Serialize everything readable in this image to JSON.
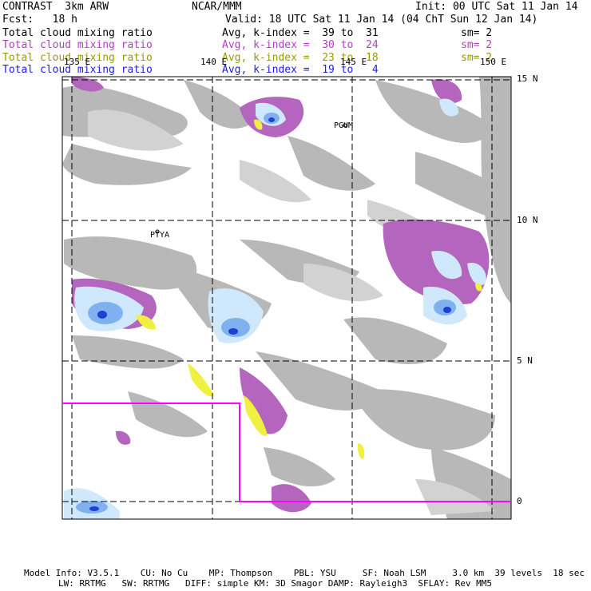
{
  "header": {
    "model": "CONTRAST  3km ARW",
    "org": "NCAR/MMM",
    "init": "Init: 00 UTC Sat 11 Jan 14",
    "fcst": "Fcst:   18 h",
    "valid": "Valid: 18 UTC Sat 11 Jan 14 (04 ChT Sun 12 Jan 14)"
  },
  "fields": [
    {
      "name": "Total cloud mixing ratio",
      "avg": "Avg, k-index =  39 to  31",
      "sm": "sm= 2",
      "color": "#000000"
    },
    {
      "name": "Total cloud mixing ratio",
      "avg": "Avg, k-index =  30 to  24",
      "sm": "sm= 2",
      "color": "#b040c0"
    },
    {
      "name": "Total cloud mixing ratio",
      "avg": "Avg, k-index =  23 to  18",
      "sm": "sm= 2",
      "color": "#9a9a00"
    },
    {
      "name": "Total cloud mixing ratio",
      "avg": "Avg, k-index =  19 to   4",
      "sm": "",
      "color": "#2020e0"
    }
  ],
  "map": {
    "lon_labels": [
      "135 E",
      "140 E",
      "145 E",
      "150 E"
    ],
    "lat_labels": [
      "15 N",
      "10 N",
      "5 N",
      "0"
    ],
    "places": [
      "PGUM",
      "PTYA"
    ],
    "colors": {
      "gray": "#b4b4b4",
      "lightgray": "#d4d4d4",
      "purple": "#b060b8",
      "lightblue": "#cfe8fb",
      "blue": "#7fb0f0",
      "darkblue": "#2040d0",
      "yellow": "#f0f040",
      "boundary": "#ff00ff"
    }
  },
  "footer": {
    "line1": "Model Info: V3.5.1    CU: No Cu    MP: Thompson    PBL: YSU     SF: Noah LSM     3.0 km  39 levels  18 sec",
    "line2": "LW: RRTMG   SW: RRTMG   DIFF: simple KM: 3D Smagor DAMP: Rayleigh3  SFLAY: Rev MM5"
  }
}
